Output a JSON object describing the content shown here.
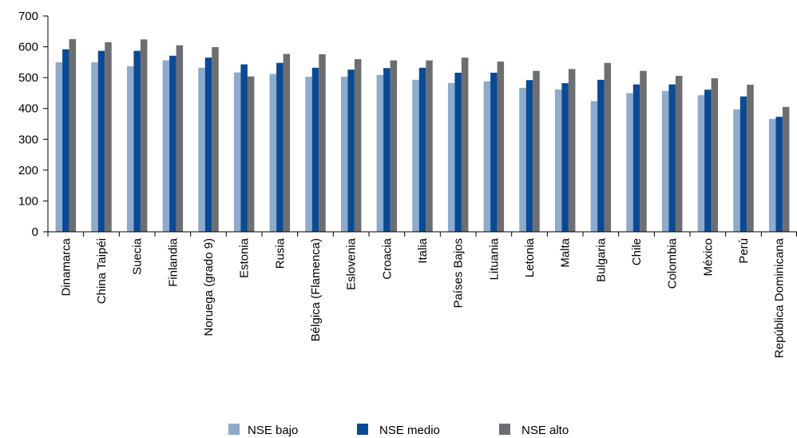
{
  "chart_data": {
    "type": "bar",
    "categories": [
      "Dinamarca",
      "China Taipéi",
      "Suecia",
      "Finlandia",
      "Noruega (grado 9)",
      "Estonia",
      "Rusia",
      "Bélgica (Flamenca)",
      "Eslovenia",
      "Croacia",
      "Italia",
      "Países Bajos",
      "Lituania",
      "Letonia",
      "Malta",
      "Bulgaria",
      "Chile",
      "Colombia",
      "México",
      "Perú",
      "República Dominicana"
    ],
    "series": [
      {
        "name": "NSE bajo",
        "color": "#8eaacc",
        "values": [
          550,
          550,
          537,
          556,
          532,
          517,
          512,
          503,
          503,
          509,
          493,
          483,
          488,
          467,
          462,
          424,
          450,
          457,
          443,
          397,
          366
        ]
      },
      {
        "name": "NSE medio",
        "color": "#0a4a94",
        "values": [
          592,
          587,
          587,
          571,
          565,
          543,
          548,
          532,
          526,
          531,
          532,
          516,
          516,
          492,
          482,
          493,
          478,
          478,
          461,
          439,
          373
        ]
      },
      {
        "name": "NSE alto",
        "color": "#6d6e71",
        "values": [
          625,
          615,
          624,
          605,
          599,
          504,
          577,
          576,
          560,
          556,
          556,
          565,
          552,
          522,
          528,
          548,
          522,
          506,
          498,
          477,
          405
        ]
      }
    ],
    "yticks": [
      0,
      100,
      200,
      300,
      400,
      500,
      600,
      700
    ],
    "ylim": [
      0,
      700
    ],
    "title": "",
    "xlabel": "",
    "ylabel": "",
    "grid": false,
    "legend_position": "bottom-center"
  }
}
